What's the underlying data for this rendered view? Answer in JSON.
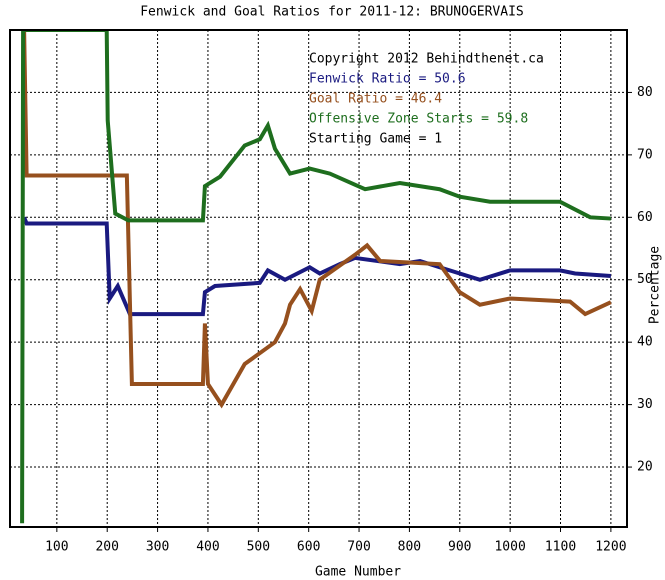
{
  "chart_data": {
    "type": "line",
    "title": "Fenwick and Goal Ratios for 2011-12: BRUNOGERVAIS",
    "x_label": "Game Number",
    "y_label": "Percentage",
    "annotations": [
      "Copyright 2012 Behindthenet.ca",
      "Starting Game = 1"
    ],
    "xlim": [
      7,
      1232
    ],
    "ylim": [
      10.4,
      90
    ],
    "xticks": [
      100,
      200,
      300,
      400,
      500,
      600,
      700,
      800,
      900,
      1000,
      1100,
      1200
    ],
    "yticks": [
      20,
      30,
      40,
      50,
      60,
      70,
      80
    ],
    "grid": true,
    "series": [
      {
        "name": "Fenwick Ratio = 50.6",
        "color": "#1a1a80",
        "x": [
          35,
          40,
          199,
          205,
          221,
          245,
          390,
          394,
          414,
          503,
          519,
          553,
          602,
          622,
          662,
          692,
          781,
          821,
          860,
          900,
          940,
          1000,
          1099,
          1129,
          1200
        ],
        "values": [
          60,
          59,
          59,
          47,
          49,
          44.5,
          44.5,
          48,
          49,
          49.5,
          51.5,
          50,
          52,
          51,
          52.5,
          53.5,
          52.5,
          53,
          52,
          51,
          50,
          51.5,
          51.5,
          51,
          50.6
        ]
      },
      {
        "name": "Goal Ratio = 46.4",
        "color": "#96501e",
        "x": [
          35,
          40,
          239,
          249,
          390,
          394,
          400,
          427,
          473,
          533,
          553,
          563,
          583,
          606,
          622,
          692,
          716,
          742,
          860,
          900,
          940,
          1000,
          1119,
          1149,
          1200
        ],
        "values": [
          90,
          66.7,
          66.7,
          33.3,
          33.3,
          43,
          33.3,
          30,
          36.5,
          40,
          43,
          46,
          48.5,
          45,
          50,
          54,
          55.5,
          53,
          52.5,
          48,
          46,
          47,
          46.5,
          44.5,
          46.4
        ]
      },
      {
        "name": "Offensive Zone Starts = 59.8",
        "color": "#1e6e1e",
        "x": [
          31,
          33,
          199,
          201,
          216,
          242,
          390,
          394,
          424,
          473,
          503,
          519,
          533,
          563,
          602,
          642,
          712,
          781,
          860,
          900,
          960,
          1099,
          1159,
          1200
        ],
        "values": [
          11,
          90,
          90,
          75.5,
          60.6,
          59.5,
          59.5,
          65,
          66.5,
          71.5,
          72.5,
          74.7,
          71,
          67,
          67.8,
          67,
          64.5,
          65.5,
          64.5,
          63.3,
          62.5,
          62.5,
          60,
          59.8
        ]
      }
    ]
  }
}
